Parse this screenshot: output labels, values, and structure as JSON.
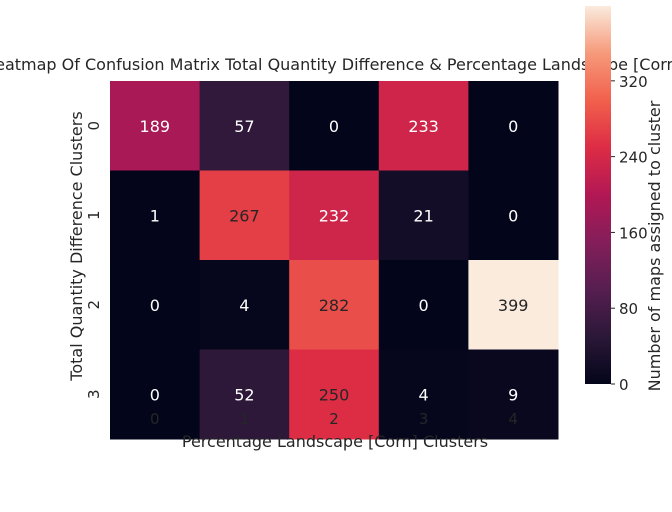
{
  "chart_data": {
    "type": "heatmap",
    "title": "Heatmap Of Confusion Matrix Total Quantity Difference & Percentage Landscape [Corn]",
    "xlabel": "Percentage Landscape [Corn] Clusters",
    "ylabel": "Total Quantity Difference Clusters",
    "x_categories": [
      "0",
      "1",
      "2",
      "3",
      "4"
    ],
    "y_categories": [
      "0",
      "1",
      "2",
      "3"
    ],
    "values": [
      [
        189,
        57,
        0,
        233,
        0
      ],
      [
        1,
        267,
        232,
        21,
        0
      ],
      [
        0,
        4,
        282,
        0,
        399
      ],
      [
        0,
        52,
        250,
        4,
        9
      ]
    ],
    "colorbar": {
      "label": "Number of maps assigned to cluster",
      "ticks": [
        0,
        80,
        160,
        240,
        320
      ],
      "range": [
        0,
        399
      ],
      "colormap": "rocket"
    },
    "grid": false
  }
}
